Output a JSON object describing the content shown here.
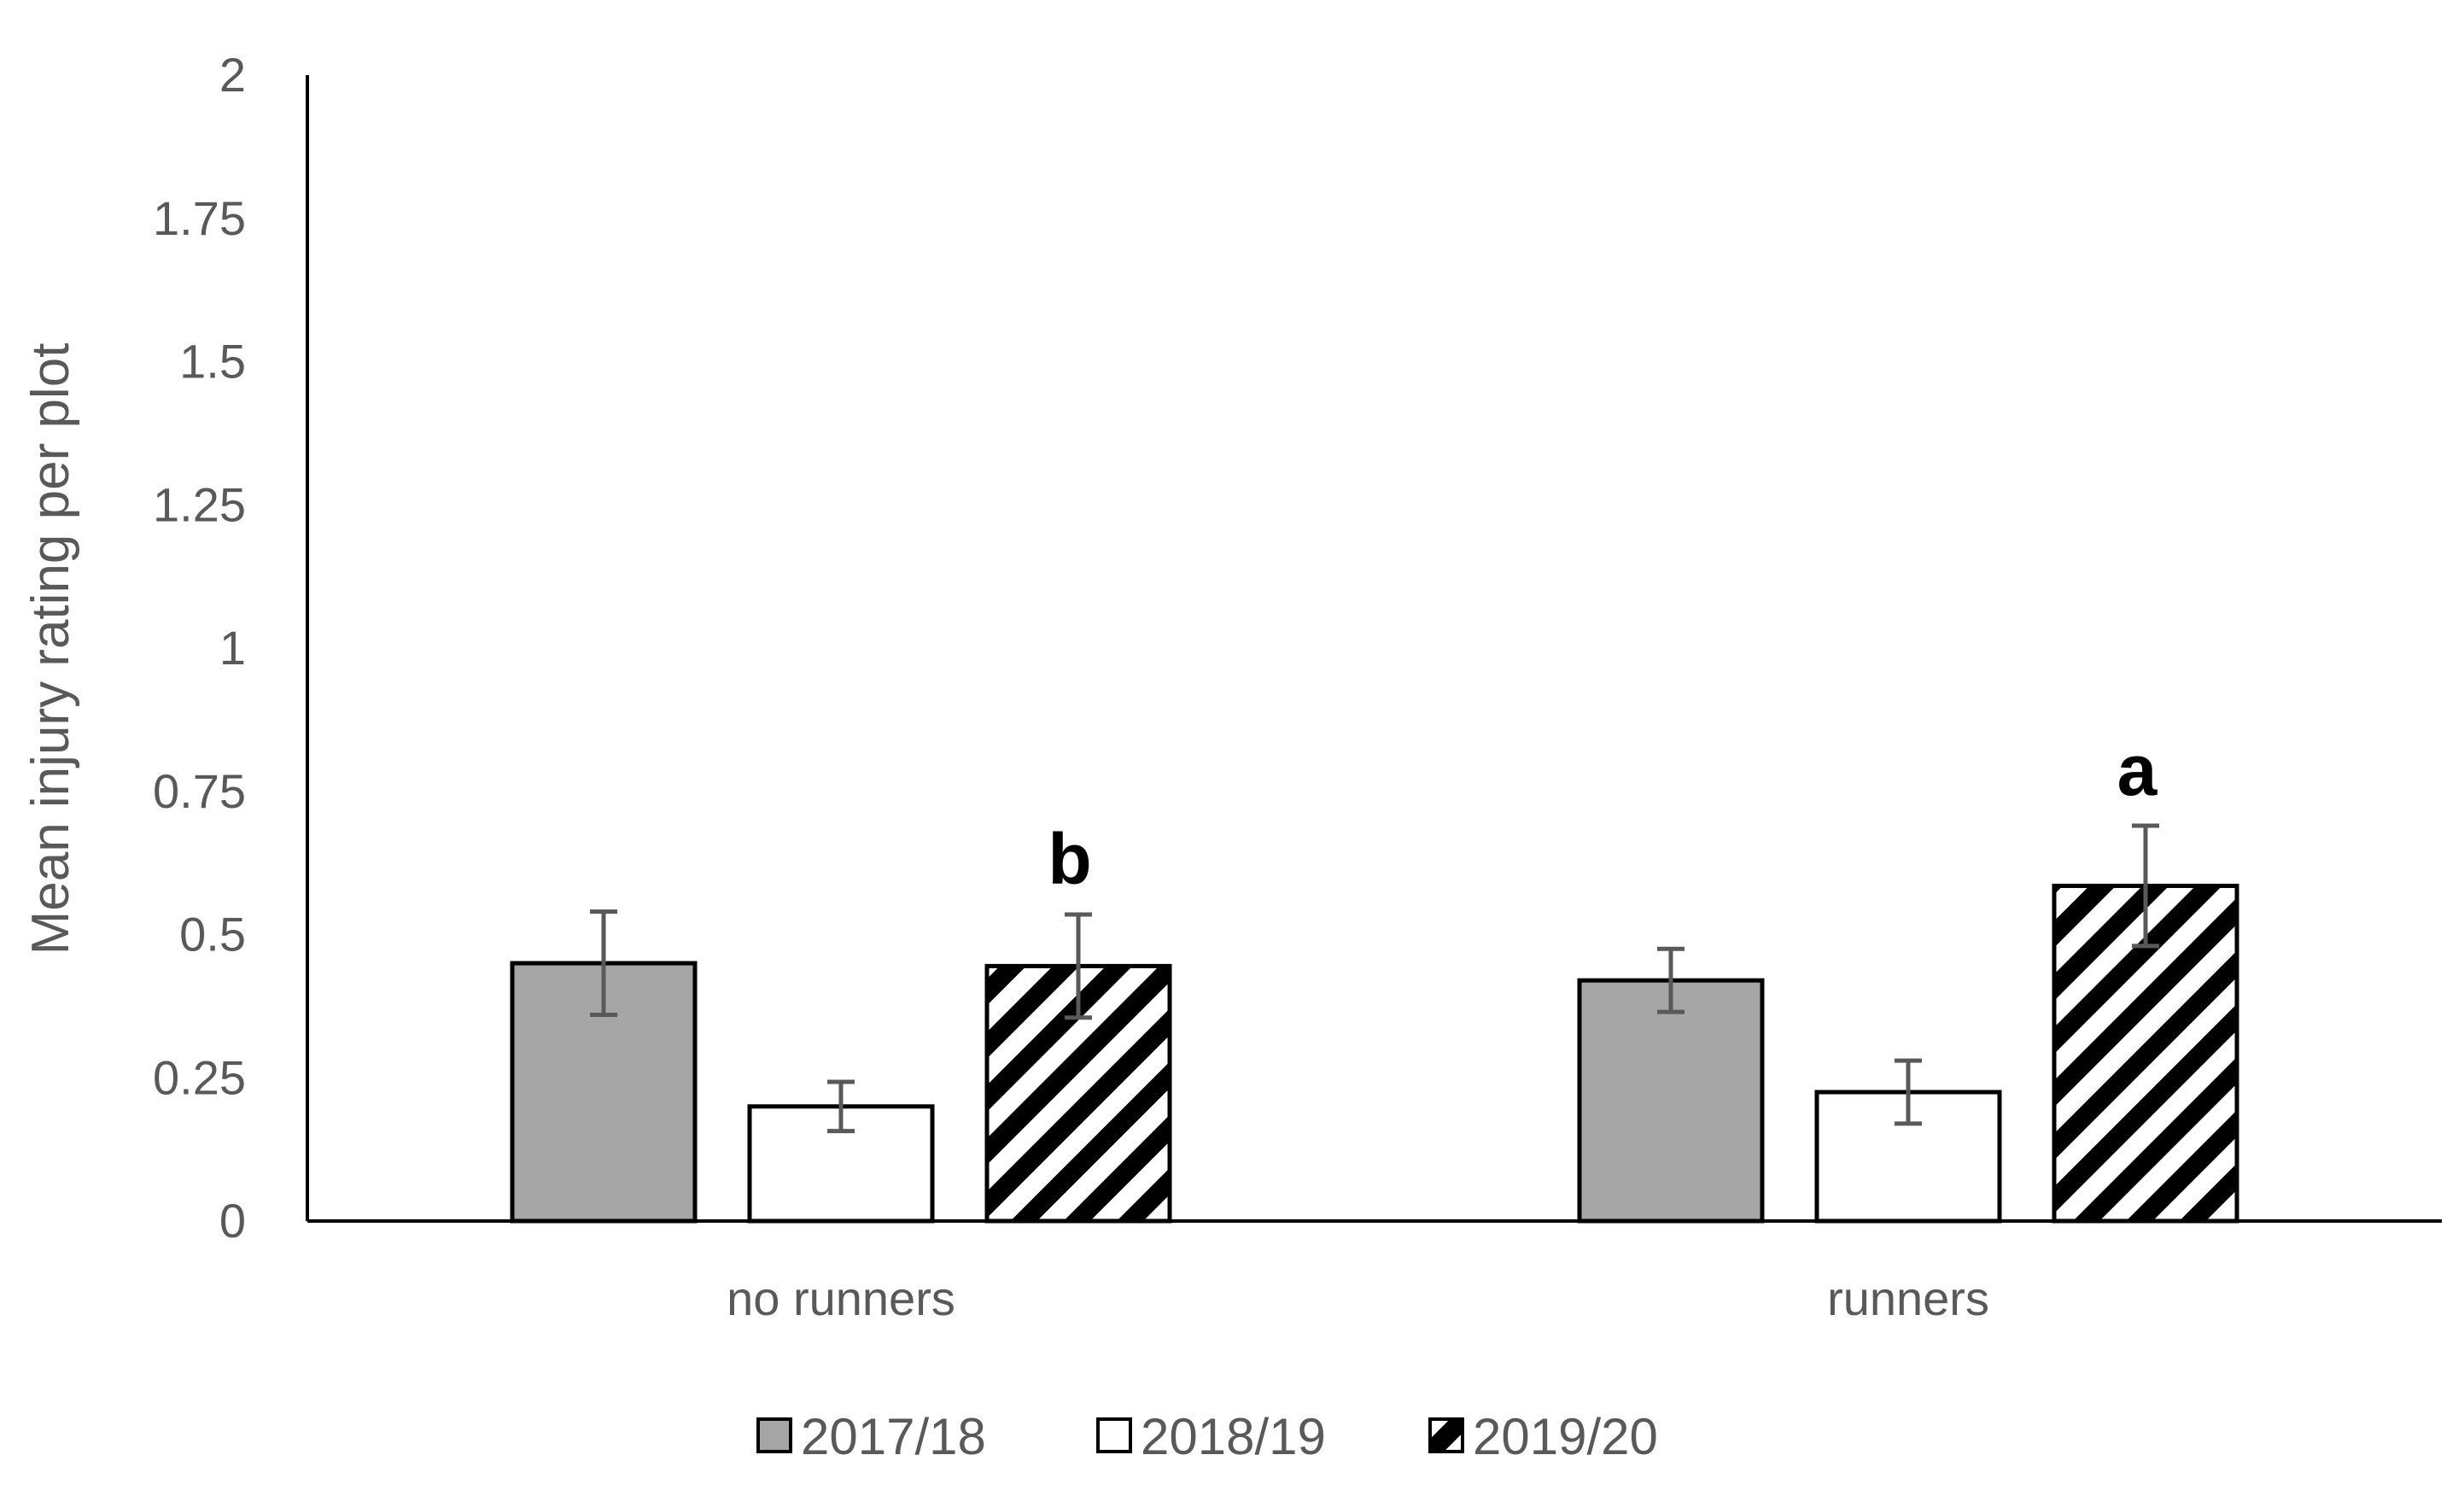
{
  "chart_data": {
    "type": "bar",
    "categories": [
      "no runners",
      "runners"
    ],
    "series": [
      {
        "name": "2017/18",
        "values": [
          0.45,
          0.42
        ],
        "errors": [
          0.09,
          0.055
        ],
        "fill": "#a6a6a6",
        "pattern": "solid"
      },
      {
        "name": "2018/19",
        "values": [
          0.2,
          0.225
        ],
        "errors": [
          0.043,
          0.055
        ],
        "fill": "#ffffff",
        "pattern": "solid"
      },
      {
        "name": "2019/20",
        "values": [
          0.445,
          0.585
        ],
        "errors": [
          0.09,
          0.105
        ],
        "fill": "#ffffff",
        "pattern": "diagonal-stripes"
      }
    ],
    "significance_letters": [
      {
        "category": "no runners",
        "series": "2019/20",
        "label": "b"
      },
      {
        "category": "runners",
        "series": "2019/20",
        "label": "a"
      }
    ],
    "ylabel": "Mean injury rating per plot",
    "xlabel": "",
    "ylim": [
      0,
      2
    ],
    "yticks": [
      "0",
      "0.25",
      "0.5",
      "0.75",
      "1",
      "1.25",
      "1.5",
      "1.75",
      "2"
    ],
    "grid": false,
    "legend": "bottom",
    "colors": {
      "axis": "#000000",
      "text": "#595959",
      "error_bar": "#595959",
      "bar_outline": "#000000"
    }
  }
}
